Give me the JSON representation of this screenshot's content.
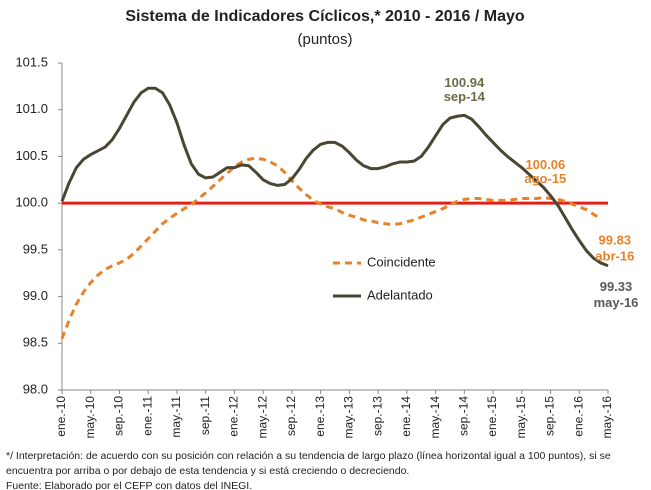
{
  "chart_data": {
    "type": "line",
    "title": "Sistema de Indicadores Cíclicos,* 2010 - 2016 / Mayo",
    "subtitle": "(puntos)",
    "categories": [
      "ene.-10",
      null,
      null,
      null,
      "may.-10",
      null,
      null,
      null,
      "sep.-10",
      null,
      null,
      null,
      "ene.-11",
      null,
      null,
      null,
      "may.-11",
      null,
      null,
      null,
      "sep.-11",
      null,
      null,
      null,
      "ene.-12",
      null,
      null,
      null,
      "may.-12",
      null,
      null,
      null,
      "sep.-12",
      null,
      null,
      null,
      "ene.-13",
      null,
      null,
      null,
      "may.-13",
      null,
      null,
      null,
      "sep.-13",
      null,
      null,
      null,
      "ene.-14",
      null,
      null,
      null,
      "may.-14",
      null,
      null,
      null,
      "sep.-14",
      null,
      null,
      null,
      "ene.-15",
      null,
      null,
      null,
      "may.-15",
      null,
      null,
      null,
      "sep.-15",
      null,
      null,
      null,
      "ene.-16",
      null,
      null,
      null,
      "may.-16"
    ],
    "series": [
      {
        "name": "Coincidente",
        "color": "#e8822a",
        "dashed": true,
        "values": [
          98.55,
          98.75,
          98.92,
          99.05,
          99.15,
          99.23,
          99.29,
          99.33,
          99.36,
          99.4,
          99.46,
          99.54,
          99.62,
          99.7,
          99.78,
          99.84,
          99.89,
          99.94,
          99.98,
          100.05,
          100.11,
          100.18,
          100.25,
          100.32,
          100.39,
          100.44,
          100.47,
          100.48,
          100.47,
          100.44,
          100.4,
          100.33,
          100.24,
          100.16,
          100.09,
          100.03,
          99.99,
          99.96,
          99.94,
          99.9,
          99.87,
          99.85,
          99.82,
          99.81,
          99.79,
          99.78,
          99.77,
          99.78,
          99.8,
          99.82,
          99.85,
          99.88,
          99.91,
          99.94,
          99.98,
          100.02,
          100.04,
          100.05,
          100.05,
          100.04,
          100.03,
          100.03,
          100.03,
          100.04,
          100.05,
          100.05,
          100.05,
          100.06,
          100.05,
          100.04,
          100.02,
          99.99,
          99.96,
          99.93,
          99.88,
          99.83,
          null
        ]
      },
      {
        "name": "Adelantado",
        "color": "#4a4632",
        "dashed": false,
        "values": [
          100.02,
          100.22,
          100.38,
          100.47,
          100.52,
          100.56,
          100.6,
          100.68,
          100.8,
          100.94,
          101.08,
          101.18,
          101.23,
          101.23,
          101.18,
          101.05,
          100.86,
          100.62,
          100.42,
          100.31,
          100.27,
          100.28,
          100.33,
          100.38,
          100.38,
          100.41,
          100.4,
          100.33,
          100.25,
          100.21,
          100.19,
          100.2,
          100.26,
          100.36,
          100.48,
          100.57,
          100.63,
          100.65,
          100.65,
          100.61,
          100.54,
          100.46,
          100.4,
          100.37,
          100.37,
          100.39,
          100.42,
          100.44,
          100.44,
          100.45,
          100.5,
          100.6,
          100.72,
          100.84,
          100.91,
          100.93,
          100.94,
          100.9,
          100.82,
          100.73,
          100.65,
          100.57,
          100.5,
          100.44,
          100.38,
          100.31,
          100.24,
          100.17,
          100.08,
          99.98,
          99.85,
          99.72,
          99.6,
          99.49,
          99.41,
          99.36,
          99.33
        ]
      }
    ],
    "annotations": [
      {
        "text": "100.94",
        "date": "sep-14",
        "color": "#6b6b47"
      },
      {
        "text": "100.06",
        "date": "ago-15",
        "color": "#e8822a"
      },
      {
        "text": "99.83",
        "date": "abr-16",
        "color": "#e8822a"
      },
      {
        "text": "99.33",
        "date": "may-16",
        "color": "#595959"
      }
    ],
    "reference_line": {
      "value": 100,
      "color": "#e0201b"
    },
    "ylim": [
      98,
      101.5
    ],
    "yticks": [
      {
        "value": 98,
        "label": "98.0"
      },
      98.5,
      {
        "value": 99,
        "label": "99.0"
      },
      99.5,
      {
        "value": 100,
        "label": "100.0"
      },
      100.5,
      {
        "value": 101,
        "label": "101.0"
      },
      101.5
    ],
    "grid": false,
    "notes": [
      "*/ Interpretación: de acuerdo con su posición con relación a su tendencia de largo plazo (línea horizontal igual a 100 puntos), si se",
      "encuentra por arriba o por debajo de esta tendencia y si está creciendo o decreciendo.",
      "Fuente: Elaborado por el CEFP con datos del INEGI."
    ]
  }
}
